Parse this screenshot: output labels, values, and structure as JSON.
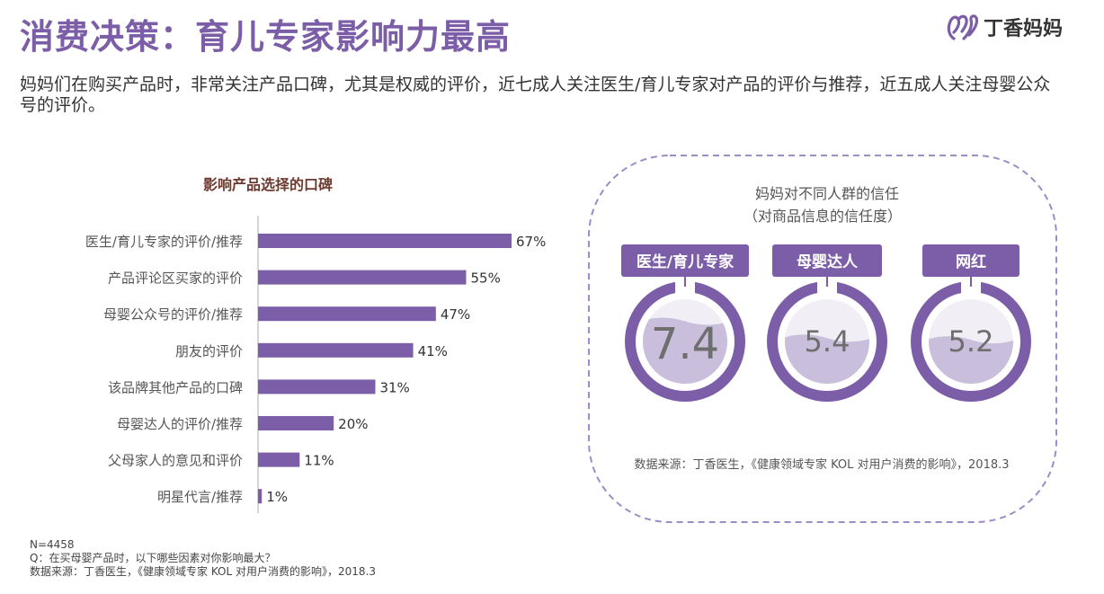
{
  "header": {
    "title": "消费决策：育儿专家影响力最高",
    "logo_text": "丁香妈妈",
    "subtitle": "妈妈们在购买产品时，非常关注产品口碑，尤其是权威的评价，近七成人关注医生/育儿专家对产品的评价与推荐，近五成人关注母婴公众号的评价。"
  },
  "chart_data": [
    {
      "type": "bar",
      "orientation": "horizontal",
      "title": "影响产品选择的口碑",
      "categories": [
        "医生/育儿专家的评价/推荐",
        "产品评论区买家的评价",
        "母婴公众号的评价/推荐",
        "朋友的评价",
        "该品牌其他产品的口碑",
        "母婴达人的评价/推荐",
        "父母家人的意见和评价",
        "明星代言/推荐"
      ],
      "values": [
        67,
        55,
        47,
        41,
        31,
        20,
        11,
        1
      ],
      "value_labels": [
        "67%",
        "55%",
        "47%",
        "41%",
        "31%",
        "20%",
        "11%",
        "1%"
      ],
      "unit": "%",
      "xlim": [
        0,
        100
      ],
      "bar_color": "#7b5ea7"
    },
    {
      "type": "gauge",
      "title": "妈妈对不同人群的信任",
      "subtitle": "（对商品信息的信任度）",
      "categories": [
        "医生/育儿专家",
        "母婴达人",
        "网红"
      ],
      "values": [
        7.4,
        5.4,
        5.2
      ],
      "value_labels": [
        "7.4",
        "5.4",
        "5.2"
      ],
      "scale_max": 10,
      "source": "数据来源：丁香医生，《健康领域专家 KOL 对用户消费的影响》，2018.3"
    }
  ],
  "footnotes": {
    "n": "N=4458",
    "question": "Q：在买母婴产品时，以下哪些因素对你影响最大？",
    "source": "数据来源：丁香医生，《健康领域专家 KOL 对用户消费的影响》，2018.3"
  },
  "colors": {
    "accent": "#7b5ea7",
    "accent_light": "#c9bfdc",
    "panel_border": "#9d8cc6"
  }
}
